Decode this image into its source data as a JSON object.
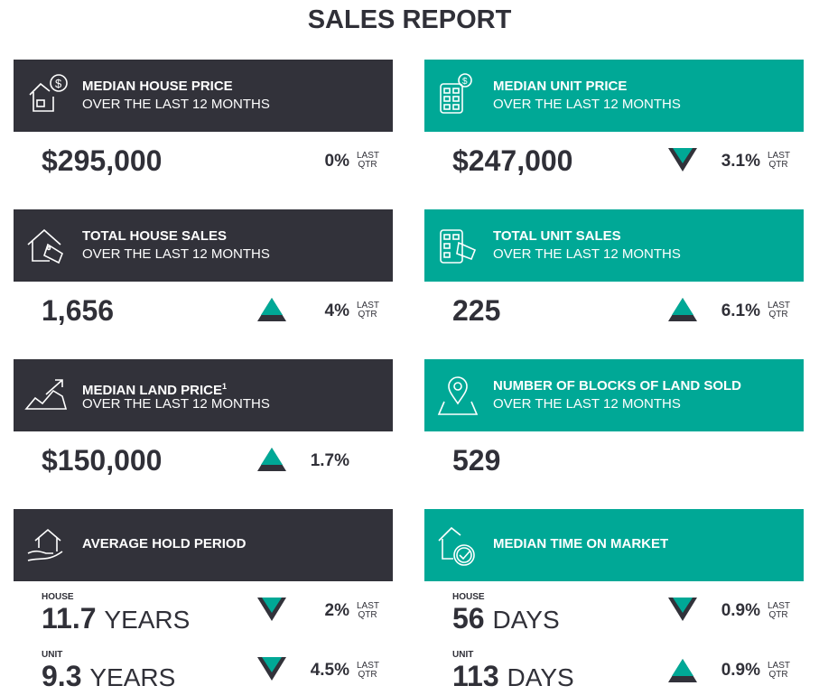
{
  "title": "SALES REPORT",
  "colors": {
    "dark": "#32323a",
    "teal": "#00a896"
  },
  "cards": [
    {
      "title": "MEDIAN HOUSE PRICE",
      "subtitle": "OVER THE LAST 12 MONTHS",
      "icon": "house-dollar-icon",
      "value": "$295,000",
      "change": "0%",
      "trend": "none",
      "period": "LAST QTR"
    },
    {
      "title": "MEDIAN UNIT PRICE",
      "subtitle": "OVER THE LAST 12 MONTHS",
      "icon": "building-dollar-icon",
      "value": "$247,000",
      "change": "3.1%",
      "trend": "down",
      "period": "LAST QTR"
    },
    {
      "title": "TOTAL HOUSE SALES",
      "subtitle": "OVER THE LAST 12 MONTHS",
      "icon": "house-sold-tag-icon",
      "value": "1,656",
      "change": "4%",
      "trend": "up",
      "period": "LAST QTR"
    },
    {
      "title": "TOTAL UNIT SALES",
      "subtitle": "OVER THE LAST 12 MONTHS",
      "icon": "building-sold-tag-icon",
      "value": "225",
      "change": "6.1%",
      "trend": "up",
      "period": "LAST QTR"
    },
    {
      "title": "MEDIAN LAND PRICE",
      "footnote": "1",
      "subtitle": "OVER THE LAST 12 MONTHS",
      "icon": "land-trend-icon",
      "value": "$150,000",
      "change": "1.7%",
      "trend": "up"
    },
    {
      "title": "NUMBER OF BLOCKS OF LAND SOLD",
      "subtitle": "OVER THE LAST 12 MONTHS",
      "icon": "map-pin-icon",
      "value": "529"
    },
    {
      "title": "AVERAGE HOLD PERIOD",
      "icon": "hand-house-icon",
      "rows": [
        {
          "label": "HOUSE",
          "value": "11.7",
          "unit": "YEARS",
          "change": "2%",
          "trend": "down",
          "period": "LAST QTR"
        },
        {
          "label": "UNIT",
          "value": "9.3",
          "unit": "YEARS",
          "change": "4.5%",
          "trend": "down",
          "period": "LAST QTR"
        }
      ]
    },
    {
      "title": "MEDIAN TIME ON MARKET",
      "icon": "house-clock-check-icon",
      "rows": [
        {
          "label": "HOUSE",
          "value": "56",
          "unit": "DAYS",
          "change": "0.9%",
          "trend": "down",
          "period": "LAST QTR"
        },
        {
          "label": "UNIT",
          "value": "113",
          "unit": "DAYS",
          "change": "0.9%",
          "trend": "up",
          "period": "LAST QTR"
        }
      ]
    }
  ]
}
